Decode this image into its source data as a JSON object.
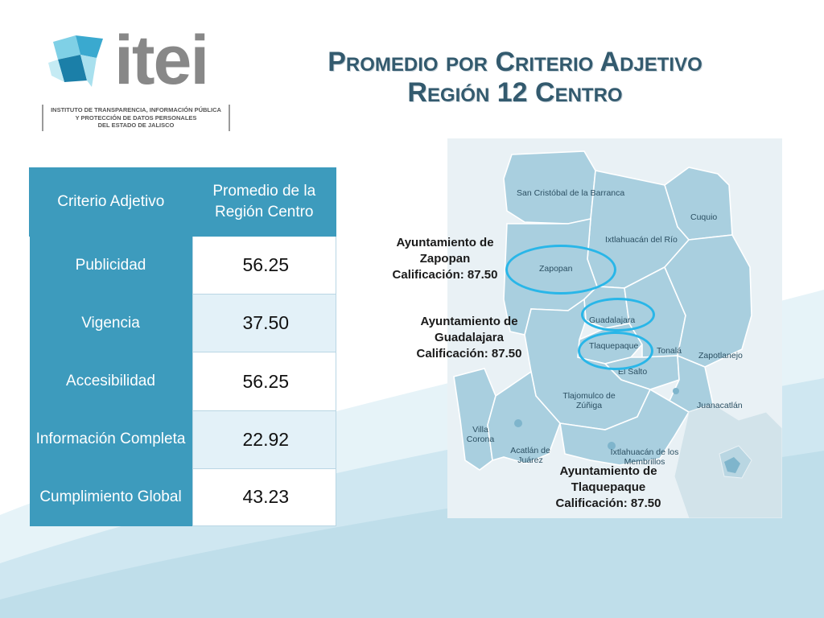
{
  "logo": {
    "wordmark": "itei",
    "subtitle_lines": [
      "INSTITUTO DE TRANSPARENCIA, INFORMACIÓN PÚBLICA",
      "Y PROTECCIÓN DE DATOS PERSONALES",
      "DEL ESTADO DE JALISCO"
    ]
  },
  "title": {
    "line1": "Promedio por Criterio Adjetivo",
    "line2": "Región 12  Centro"
  },
  "table": {
    "headers": [
      "Criterio Adjetivo",
      "Promedio de la Región Centro"
    ],
    "rows": [
      {
        "criterio": "Publicidad",
        "promedio": "56.25"
      },
      {
        "criterio": "Vigencia",
        "promedio": "37.50"
      },
      {
        "criterio": "Accesibilidad",
        "promedio": "56.25"
      },
      {
        "criterio": "Información Completa",
        "promedio": "22.92"
      },
      {
        "criterio": "Cumplimiento Global",
        "promedio": "43.23"
      }
    ]
  },
  "map": {
    "municipalities": [
      "San Cristóbal de la Barranca",
      "Cuquio",
      "Ixtlahuacán del Río",
      "Zapopan",
      "Guadalajara",
      "Tlaquepaque",
      "Tonalá",
      "Zapotlanejo",
      "El Salto",
      "Tlajomulco de Zúñiga",
      "Juanacatlán",
      "Villa Corona",
      "Acatlán de Juárez",
      "Ixtlahuacán de los Membrillos"
    ],
    "colors": {
      "region_fill": "#a9cfdf",
      "region_border": "#ffffff",
      "highlight_ring": "#29b6e8",
      "background": "#e9f1f5"
    }
  },
  "annotations": {
    "zapopan": [
      "Ayuntamiento de",
      "Zapopan",
      "Calificación: 87.50"
    ],
    "guadalajara": [
      "Ayuntamiento de",
      "Guadalajara",
      "Calificación: 87.50"
    ],
    "tlaquepaque": [
      "Ayuntamiento de",
      "Tlaquepaque",
      "Calificación: 87.50"
    ]
  }
}
